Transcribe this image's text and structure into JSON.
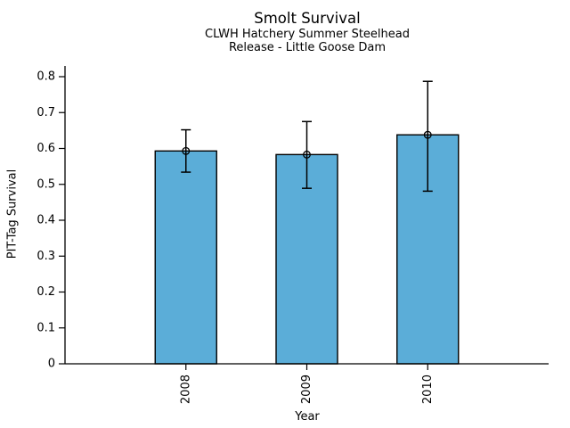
{
  "chart_data": {
    "type": "bar",
    "title": "Smolt Survival",
    "subtitle": [
      "CLWH Hatchery Summer Steelhead",
      "Release - Little Goose Dam"
    ],
    "xlabel": "Year",
    "ylabel": "PIT-Tag Survival",
    "categories": [
      "2008",
      "2009",
      "2010"
    ],
    "values": [
      0.593,
      0.583,
      0.638
    ],
    "error_low": [
      0.534,
      0.489,
      0.481
    ],
    "error_high": [
      0.652,
      0.675,
      0.787
    ],
    "yticks": [
      0,
      0.1,
      0.2,
      0.3,
      0.4,
      0.5,
      0.6,
      0.7,
      0.8
    ],
    "ytick_labels": [
      "0",
      "0.1",
      "0.2",
      "0.3",
      "0.4",
      "0.5",
      "0.6",
      "0.7",
      "0.8"
    ],
    "ylim": [
      0,
      0.83
    ],
    "grid": false,
    "legend_position": "none",
    "marker": "open-circle",
    "colors": {
      "bar_fill": "#5BADD8",
      "bar_edge": "#000000",
      "error_bar": "#000000",
      "axis": "#000000",
      "text": "#000000",
      "background": "#FFFFFF"
    }
  }
}
